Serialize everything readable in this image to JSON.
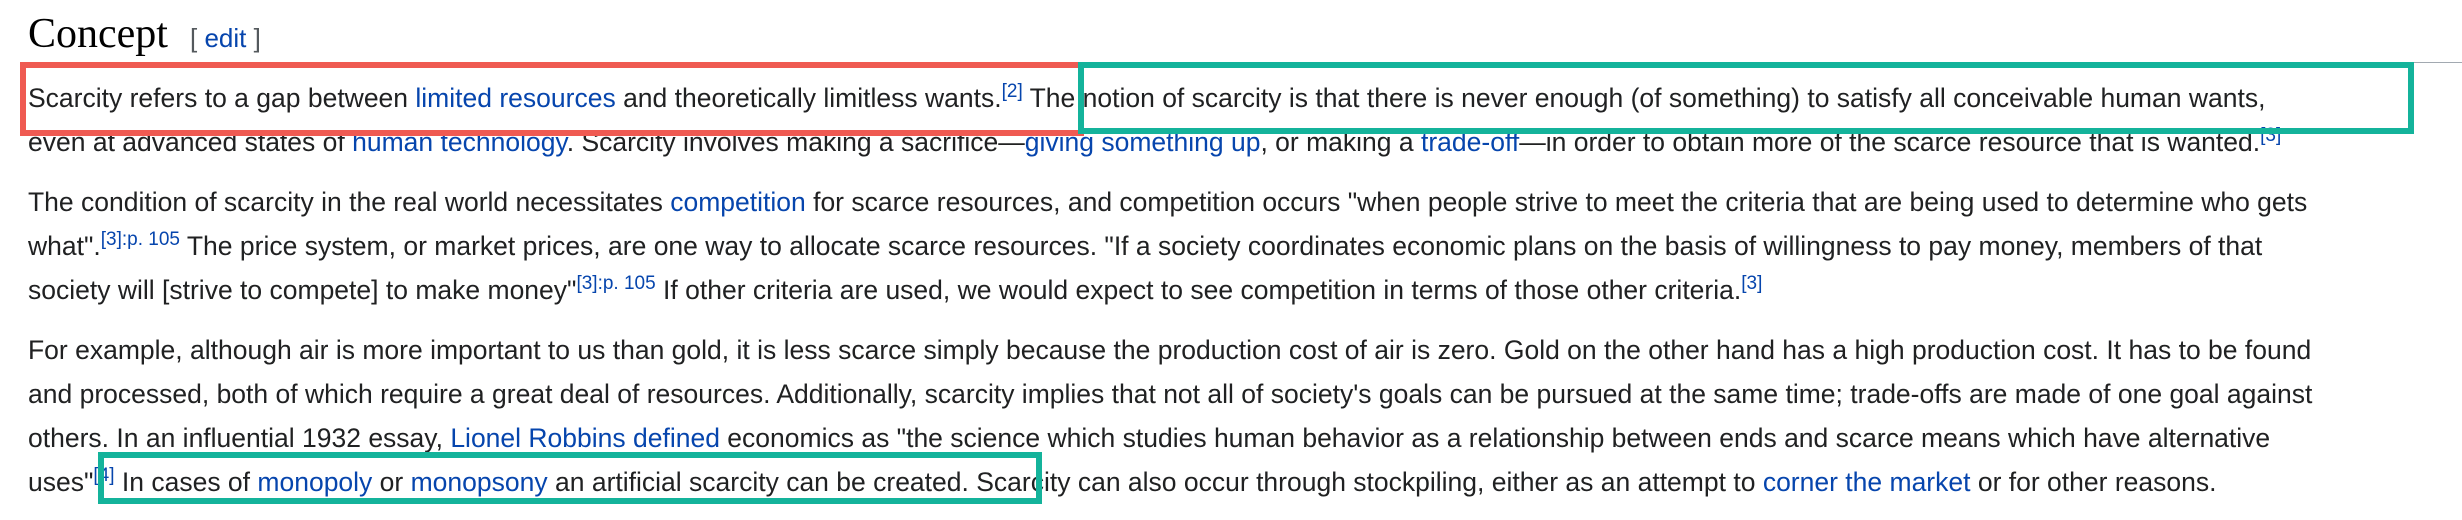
{
  "heading": {
    "title": "Concept",
    "edit_open": "[",
    "edit_label": "edit",
    "edit_close": "]"
  },
  "p1": {
    "l1": [
      "Scarcity refers to a gap between ",
      "limited resources",
      " and theoretically limitless wants.",
      "[2]",
      " The notion of scarcity is that there is never enough (of something) to satisfy all conceivable human wants,"
    ],
    "l2": [
      "even at advanced states of ",
      "human technology",
      ". Scarcity involves making a sacrifice—",
      "giving something up",
      ", or making a ",
      "trade-off",
      "—in order to obtain more of the scarce resource that is wanted.",
      "[3]"
    ]
  },
  "p2": {
    "l1": [
      "The condition of scarcity in the real world necessitates ",
      "competition",
      " for scarce resources, and competition occurs \"when people strive to meet the criteria that are being used to determine who gets"
    ],
    "l2": [
      "what\".",
      "[3]:p. 105",
      " The price system, or market prices, are one way to allocate scarce resources. \"If a society coordinates economic plans on the basis of willingness to pay money, members of that"
    ],
    "l3": [
      "society will [strive to compete] to make money\"",
      "[3]:p. 105",
      " If other criteria are used, we would expect to see competition in terms of those other criteria.",
      "[3]"
    ]
  },
  "p3": {
    "l1": [
      "For example, although air is more important to us than gold, it is less scarce simply because the production cost of air is zero. Gold on the other hand has a high production cost. It has to be found"
    ],
    "l2": [
      "and processed, both of which require a great deal of resources. Additionally, scarcity implies that not all of society's goals can be pursued at the same time; trade-offs are made of one goal against"
    ],
    "l3": [
      "others. In an influential 1932 essay, ",
      "Lionel Robbins defined",
      " economics as \"the science which studies human behavior as a relationship between ends and scarce means which have alternative"
    ],
    "l4": [
      "uses\"",
      "[4]",
      " In cases of ",
      "monopoly",
      " or ",
      "monopsony",
      " an artificial scarcity can be created.",
      " Scarcity can also occur through stockpiling, either as an attempt to ",
      "corner the market",
      " or for other reasons."
    ]
  },
  "colors": {
    "link": "#0645ad",
    "text": "#202122",
    "box_red": "#ef5a52",
    "box_green": "#14b39b"
  }
}
